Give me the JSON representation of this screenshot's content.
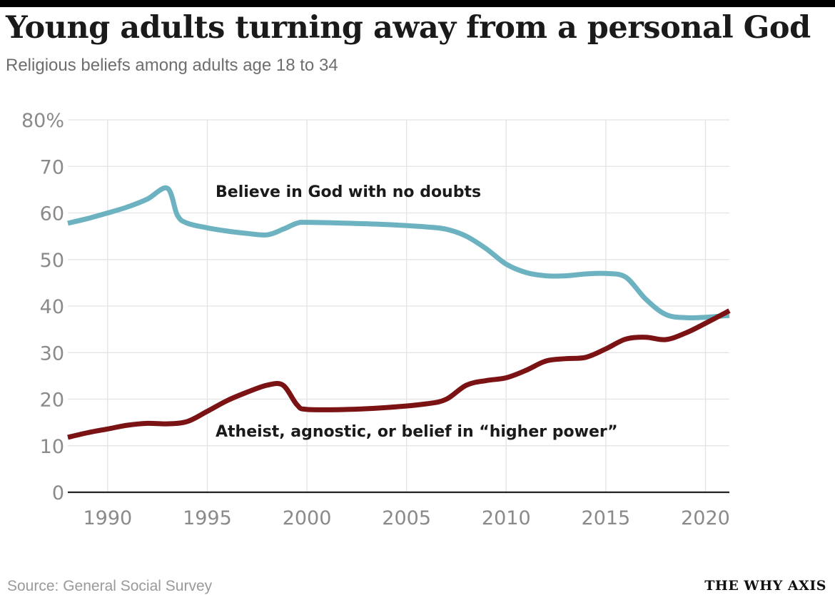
{
  "header": {
    "title": "Young adults turning away from a personal God",
    "subtitle": "Religious beliefs among adults age 18 to 34"
  },
  "footer": {
    "source": "Source: General Social Survey",
    "brand": "THE WHY AXIS"
  },
  "chart_data": {
    "type": "line",
    "title": "Young adults turning away from a personal God",
    "subtitle": "Religious beliefs among adults age 18 to 34",
    "xlabel": "",
    "ylabel": "",
    "xlim": [
      1988,
      2021.2
    ],
    "ylim": [
      0,
      80
    ],
    "grid": true,
    "x_ticks": [
      1990,
      1995,
      2000,
      2005,
      2010,
      2015,
      2020
    ],
    "x_tick_labels": [
      "1990",
      "1995",
      "2000",
      "2005",
      "2010",
      "2015",
      "2020"
    ],
    "y_ticks": [
      0,
      10,
      20,
      30,
      40,
      50,
      60,
      70,
      80
    ],
    "y_tick_labels": [
      "0",
      "10",
      "20",
      "30",
      "40",
      "50",
      "60",
      "70",
      "80%"
    ],
    "series": [
      {
        "name": "Believe in God with no doubts",
        "color": "#6cb2c0",
        "x": [
          1988,
          1989,
          1990,
          1991,
          1992,
          1993,
          1993.5,
          1994,
          1995,
          1996,
          1997,
          1998,
          1998.8,
          1999.5,
          2000,
          2002,
          2004,
          2006,
          2007,
          2008,
          2009,
          2010,
          2011,
          2012,
          2013,
          2014,
          2015,
          2016,
          2017,
          2018,
          2019,
          2020,
          2021.2
        ],
        "y": [
          57.8,
          58.8,
          60,
          61.3,
          63,
          65.3,
          59.5,
          57.8,
          56.8,
          56.1,
          55.6,
          55.3,
          56.5,
          57.8,
          58,
          57.8,
          57.5,
          57,
          56.5,
          55,
          52.3,
          49,
          47.2,
          46.5,
          46.5,
          46.9,
          47,
          46.2,
          41.5,
          38.2,
          37.5,
          37.6,
          38
        ]
      },
      {
        "name": "Atheist, agnostic, or belief in “higher power”",
        "color": "#7b1314",
        "x": [
          1988,
          1989,
          1990,
          1991,
          1992,
          1993,
          1994,
          1995,
          1996,
          1997,
          1998,
          1998.8,
          1999.5,
          2000,
          2002,
          2004,
          2006,
          2007,
          2008,
          2009,
          2010,
          2011,
          2012,
          2013,
          2014,
          2015,
          2016,
          2017,
          2018,
          2019,
          2020,
          2021.2
        ],
        "y": [
          11.8,
          12.8,
          13.6,
          14.4,
          14.8,
          14.7,
          15.2,
          17.4,
          19.7,
          21.5,
          23,
          23,
          18.8,
          17.8,
          17.8,
          18.2,
          19,
          20,
          23,
          24,
          24.6,
          26.2,
          28.2,
          28.7,
          29,
          30.8,
          32.9,
          33.3,
          32.8,
          34.2,
          36.3,
          39
        ]
      }
    ],
    "annotations": [
      {
        "text": "Believe in God with no doubts",
        "series": 0
      },
      {
        "text": "Atheist, agnostic, or belief in “higher power”",
        "series": 1
      }
    ]
  }
}
